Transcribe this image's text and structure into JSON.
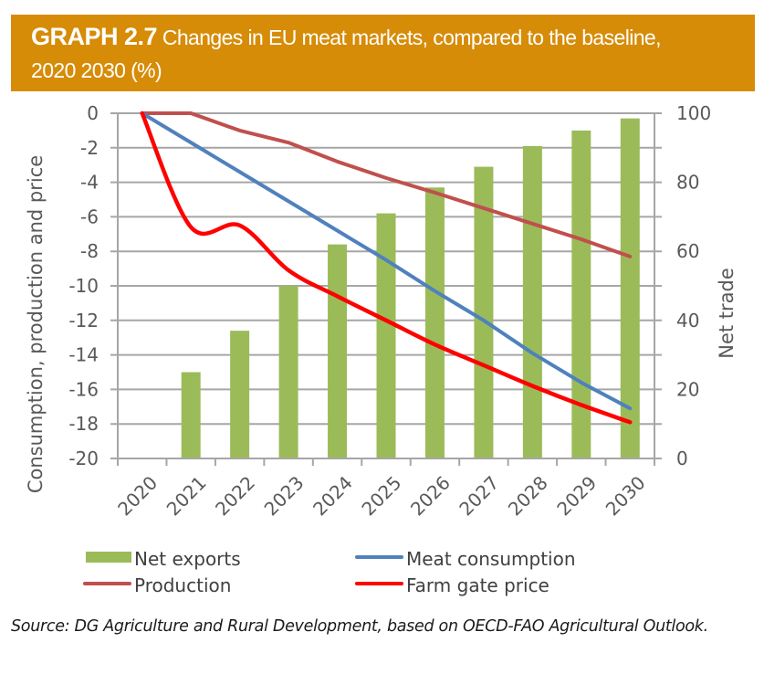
{
  "header": {
    "graph_number": "GRAPH 2.7",
    "title_line1": " Changes in EU meat markets, compared to the baseline,",
    "title_line2": "2020 2030 (%)",
    "background_color": "#d68c07"
  },
  "chart_data": {
    "type": "bar+line",
    "title": "Changes in EU meat markets, compared to the baseline, 2020 2030 (%)",
    "categories": [
      "2020",
      "2021",
      "2022",
      "2023",
      "2024",
      "2025",
      "2026",
      "2027",
      "2028",
      "2029",
      "2030"
    ],
    "left_axis": {
      "label": "Consumption, production and price",
      "range": [
        -20,
        0
      ],
      "ticks": [
        0,
        -2,
        -4,
        -6,
        -8,
        -10,
        -12,
        -14,
        -16,
        -18,
        -20
      ]
    },
    "right_axis": {
      "label": "Net trade",
      "range": [
        0,
        100
      ],
      "ticks": [
        100,
        80,
        60,
        40,
        20,
        0
      ]
    },
    "grid": true,
    "legend_position": "bottom",
    "series": [
      {
        "name": "Net exports",
        "type": "bar",
        "axis": "right",
        "color": "#9bbb59",
        "values": [
          0,
          25,
          37,
          50,
          62,
          71,
          78.5,
          84.5,
          90.5,
          95,
          98.5
        ]
      },
      {
        "name": "Production",
        "type": "line",
        "axis": "left",
        "color": "#c0504d",
        "smooth": false,
        "values": [
          0,
          0,
          -1.0,
          -1.7,
          -2.8,
          -3.75,
          -4.6,
          -5.5,
          -6.4,
          -7.3,
          -8.3
        ]
      },
      {
        "name": "Meat consumption",
        "type": "line",
        "axis": "left",
        "color": "#4f81bd",
        "smooth": false,
        "values": [
          0,
          -1.7,
          -3.4,
          -5.1,
          -6.8,
          -8.5,
          -10.3,
          -12.0,
          -13.9,
          -15.6,
          -17.1
        ]
      },
      {
        "name": "Farm gate price",
        "type": "line",
        "axis": "left",
        "color": "#ff0000",
        "smooth": true,
        "values": [
          0,
          -6.6,
          -6.5,
          -9.1,
          -10.6,
          -12.0,
          -13.4,
          -14.6,
          -15.8,
          -16.9,
          -17.9
        ]
      }
    ]
  },
  "legend": [
    {
      "label": "Net exports",
      "kind": "bar",
      "color": "#9bbb59"
    },
    {
      "label": "Meat consumption",
      "kind": "line",
      "color": "#4f81bd"
    },
    {
      "label": "Production",
      "kind": "line",
      "color": "#c0504d"
    },
    {
      "label": "Farm gate price",
      "kind": "line",
      "color": "#ff0000"
    }
  ],
  "source_note": "Source: DG Agriculture and Rural Development, based on OECD-FAO Agricultural Outlook."
}
